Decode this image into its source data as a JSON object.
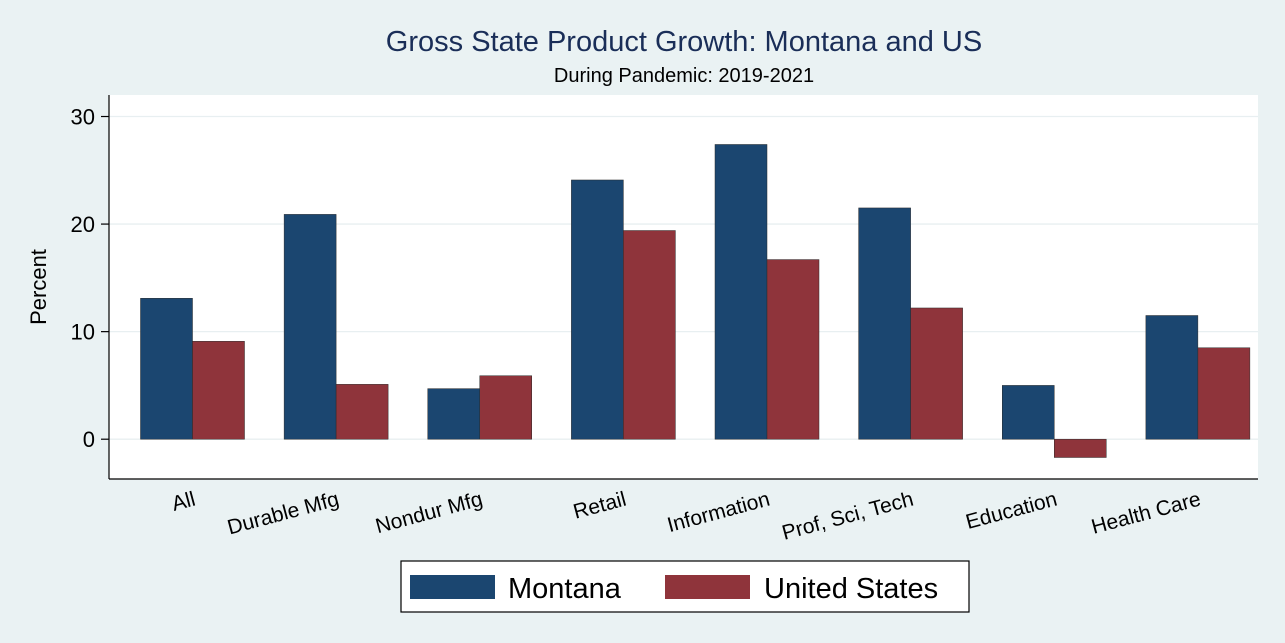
{
  "chart_data": {
    "type": "bar",
    "title": "Gross State Product Growth: Montana and US",
    "subtitle": "During Pandemic: 2019-2021",
    "xlabel": "",
    "ylabel": "Percent",
    "ylim": [
      -3.7,
      32
    ],
    "yticks": [
      0,
      10,
      20,
      30
    ],
    "grid": true,
    "legend_position": "bottom",
    "categories": [
      "All",
      "Durable Mfg",
      "Nondur Mfg",
      "Retail",
      "Information",
      "Prof, Sci, Tech",
      "Education",
      "Health Care"
    ],
    "series": [
      {
        "name": "Montana",
        "color": "#1b4670",
        "values": [
          13.1,
          20.9,
          4.7,
          24.1,
          27.4,
          21.5,
          5.0,
          11.5
        ]
      },
      {
        "name": "United States",
        "color": "#8f343b",
        "values": [
          9.1,
          5.1,
          5.9,
          19.4,
          16.7,
          12.2,
          -1.7,
          8.5
        ]
      }
    ]
  }
}
